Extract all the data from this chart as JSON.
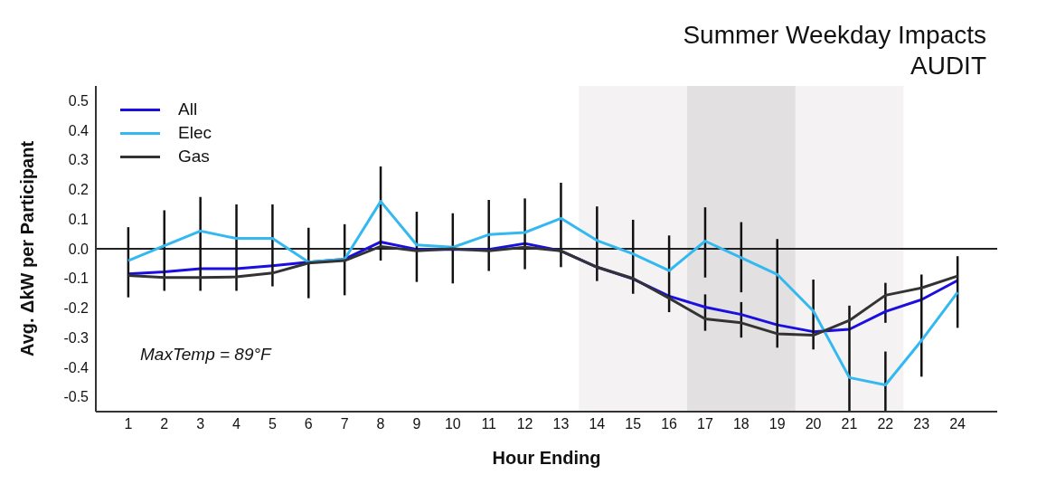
{
  "chart_data": {
    "type": "line",
    "title": "Summer Weekday Impacts",
    "subtitle": "AUDIT",
    "xlabel": "Hour Ending",
    "ylabel": "Avg. ΔkW per Participant",
    "annotations": [
      "MaxTemp = 89°F"
    ],
    "x": [
      1,
      2,
      3,
      4,
      5,
      6,
      7,
      8,
      9,
      10,
      11,
      12,
      13,
      14,
      15,
      16,
      17,
      18,
      19,
      20,
      21,
      22,
      23,
      24
    ],
    "series": [
      {
        "name": "All",
        "color": "#1a0fe0",
        "values": [
          -0.085,
          -0.078,
          -0.067,
          -0.067,
          -0.057,
          -0.045,
          -0.035,
          0.023,
          -0.002,
          -0.002,
          -0.002,
          0.018,
          -0.007,
          -0.062,
          -0.102,
          -0.16,
          -0.197,
          -0.222,
          -0.257,
          -0.28,
          -0.272,
          -0.212,
          -0.172,
          -0.107
        ],
        "errors": [
          null,
          null,
          null,
          null,
          null,
          null,
          null,
          null,
          null,
          null,
          null,
          null,
          null,
          null,
          null,
          null,
          [
            -0.277,
            -0.154
          ],
          [
            -0.3,
            -0.18
          ],
          null,
          null,
          null,
          [
            -0.25,
            -0.115
          ],
          null,
          null
        ]
      },
      {
        "name": "Elec",
        "color": "#33b8f0",
        "values": [
          -0.04,
          0.01,
          0.06,
          0.035,
          0.035,
          -0.045,
          -0.035,
          0.16,
          0.013,
          0.005,
          0.048,
          0.055,
          0.103,
          0.028,
          -0.017,
          -0.074,
          0.026,
          -0.03,
          -0.087,
          -0.21,
          -0.435,
          -0.46,
          -0.31,
          -0.147
        ],
        "errors": [
          [
            -0.164,
            0.073
          ],
          [
            -0.142,
            0.13
          ],
          [
            -0.142,
            0.175
          ],
          [
            -0.142,
            0.15
          ],
          [
            -0.127,
            0.15
          ],
          [
            -0.167,
            0.071
          ],
          [
            -0.157,
            0.083
          ],
          [
            -0.04,
            0.278
          ],
          [
            -0.112,
            0.125
          ],
          [
            -0.117,
            0.12
          ],
          [
            -0.075,
            0.165
          ],
          [
            -0.069,
            0.17
          ],
          [
            -0.062,
            0.223
          ],
          [
            -0.109,
            0.143
          ],
          [
            -0.152,
            0.098
          ],
          [
            -0.214,
            0.045
          ],
          [
            -0.097,
            0.14
          ],
          [
            -0.147,
            0.09
          ],
          [
            -0.334,
            0.033
          ],
          [
            -0.34,
            -0.104
          ],
          [
            -0.55,
            -0.192
          ],
          [
            -0.55,
            -0.347
          ],
          [
            -0.432,
            -0.087
          ],
          [
            -0.267,
            -0.025
          ]
        ]
      },
      {
        "name": "Gas",
        "color": "#333333",
        "values": [
          -0.09,
          -0.097,
          -0.097,
          -0.095,
          -0.082,
          -0.048,
          -0.04,
          0.008,
          -0.007,
          0,
          -0.007,
          0.005,
          -0.007,
          -0.062,
          -0.1,
          -0.167,
          -0.237,
          -0.25,
          -0.287,
          -0.292,
          -0.242,
          -0.157,
          -0.132,
          -0.092
        ]
      }
    ],
    "xlim": [
      0.1,
      25.1
    ],
    "xticks": [
      1,
      2,
      3,
      4,
      5,
      6,
      7,
      8,
      9,
      10,
      11,
      12,
      13,
      14,
      15,
      16,
      17,
      18,
      19,
      20,
      21,
      22,
      23,
      24
    ],
    "ylim": [
      -0.55,
      0.55
    ],
    "yticks": [
      -0.5,
      -0.4,
      -0.3,
      -0.2,
      -0.1,
      {
        "value": 0,
        "label": "0.0"
      },
      0.1,
      0.2,
      0.3,
      0.4,
      0.5
    ],
    "ref_lines": [
      {
        "axis": "y",
        "value": 0,
        "color": "#222222"
      }
    ],
    "bands": [
      {
        "axis": "x",
        "from": 13.5,
        "to": 22.5,
        "color": "#f4f2f3"
      },
      {
        "axis": "x",
        "from": 16.5,
        "to": 19.5,
        "color": "#e2e0e1"
      }
    ],
    "legend": "top left",
    "marker": "none",
    "line_style": "solid"
  }
}
